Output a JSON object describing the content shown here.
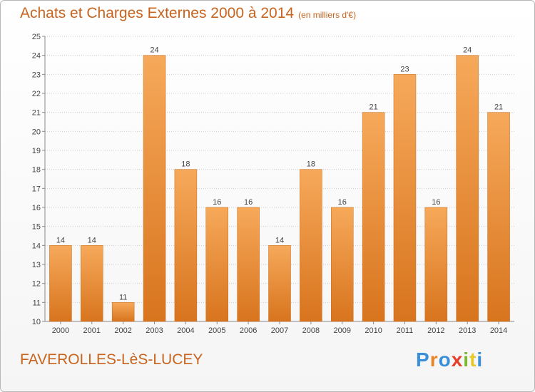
{
  "header": {
    "title": "Achats et Charges Externes 2000 à 2014",
    "unit": "(en milliers d'€)"
  },
  "footer": {
    "place": "FAVEROLLES-LèS-LUCEY"
  },
  "brand": {
    "logo_text": "Proxiti",
    "letter_colors": [
      "#3a8fd8",
      "#e8842a",
      "#3a8fd8",
      "#e8402a",
      "#7ab82e",
      "#e8c82a",
      "#3a8fd8"
    ]
  },
  "colors": {
    "bar_light": "#f6a95a",
    "bar_dark": "#d8741e",
    "title": "#c8641e",
    "grid": "#cccccc",
    "label": "#444444"
  },
  "chart_data": {
    "type": "bar",
    "categories": [
      "2000",
      "2001",
      "2002",
      "2003",
      "2004",
      "2005",
      "2006",
      "2007",
      "2008",
      "2009",
      "2010",
      "2011",
      "2012",
      "2013",
      "2014"
    ],
    "values": [
      14,
      14,
      11,
      24,
      18,
      16,
      16,
      14,
      18,
      16,
      21,
      23,
      16,
      24,
      21
    ],
    "data_labels": [
      "14",
      "14",
      "11",
      "24",
      "18",
      "16",
      "16",
      "14",
      "18",
      "16",
      "21",
      "23",
      "16",
      "24",
      "21"
    ],
    "ylim": [
      10,
      25
    ],
    "yticks": [
      "10",
      "11",
      "12",
      "13",
      "14",
      "15",
      "16",
      "17",
      "18",
      "19",
      "20",
      "21",
      "22",
      "23",
      "24",
      "25"
    ],
    "grid": true,
    "legend": "none"
  }
}
